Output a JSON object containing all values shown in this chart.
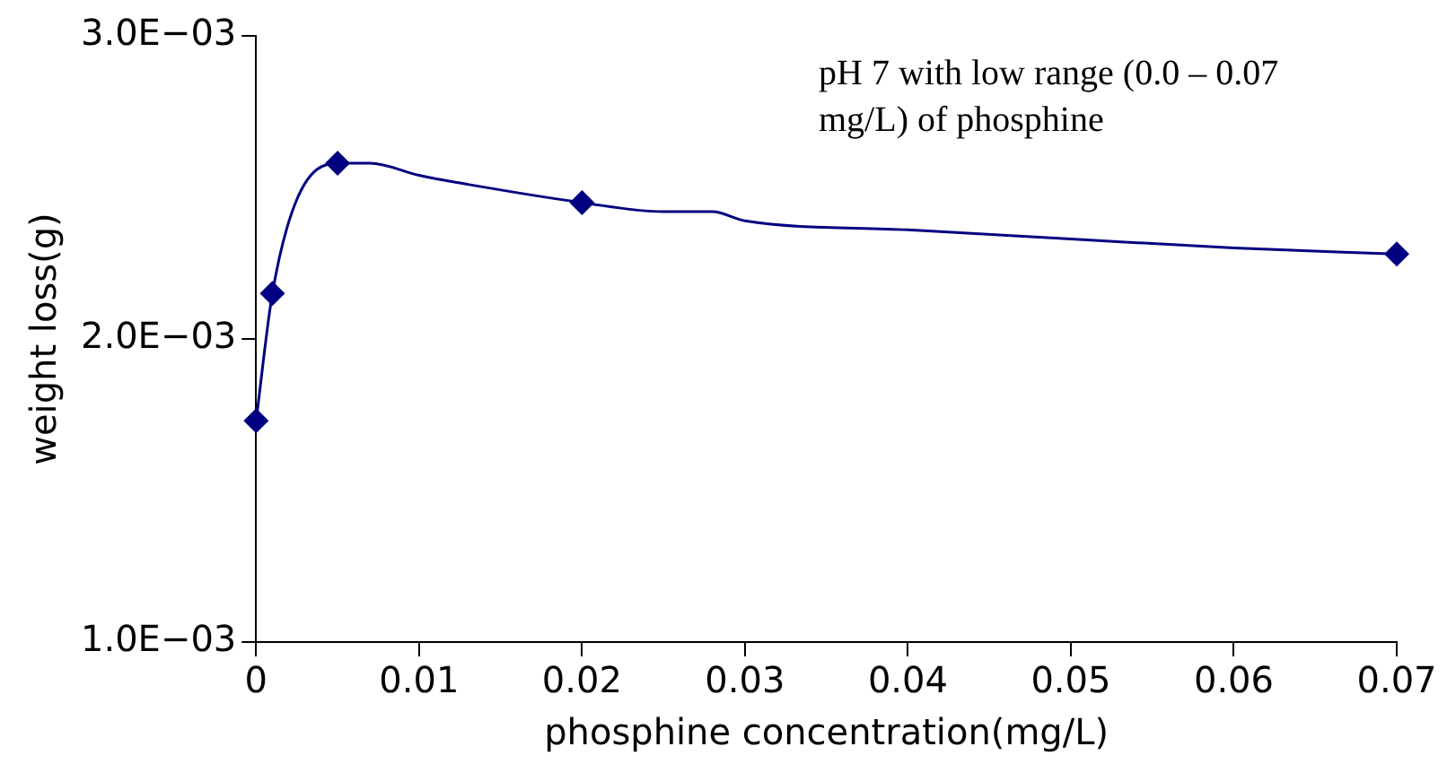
{
  "chart_data": {
    "type": "line",
    "xlabel": "phosphine concentration(mg/L)",
    "ylabel": "weight loss(g)",
    "annotations": [
      "pH 7  with low range (0.0 – 0.07 mg/L) of phosphine"
    ],
    "xlim": [
      0,
      0.07
    ],
    "xticks": [
      0,
      0.01,
      0.02,
      0.03,
      0.04,
      0.05,
      0.06,
      0.07
    ],
    "ylim": [
      0.001,
      0.003
    ],
    "yticks": [
      {
        "value": 0.001,
        "label": "1.0E−03"
      },
      {
        "value": 0.002,
        "label": "2.0E−03"
      },
      {
        "value": 0.003,
        "label": "3.0E−03"
      }
    ],
    "grid": false,
    "legend": false,
    "series": [
      {
        "marker": "none",
        "color": "#000080",
        "x": [
          0,
          0.001,
          0.0025,
          0.005,
          0.007,
          0.01,
          0.013,
          0.02,
          0.025,
          0.028,
          0.03,
          0.04,
          0.05,
          0.06,
          0.07
        ],
        "values": [
          0.00173,
          0.00215,
          0.00246,
          0.00258,
          0.00258,
          0.00254,
          0.00251,
          0.00245,
          0.00242,
          0.00242,
          0.00239,
          0.00236,
          0.00233,
          0.0023,
          0.00228
        ]
      },
      {
        "type": "scatter",
        "marker": "diamond",
        "color": "#000080",
        "x": [
          0,
          0.001,
          0.005,
          0.02,
          0.07
        ],
        "values": [
          0.00173,
          0.00215,
          0.00258,
          0.00245,
          0.00228
        ]
      }
    ]
  }
}
